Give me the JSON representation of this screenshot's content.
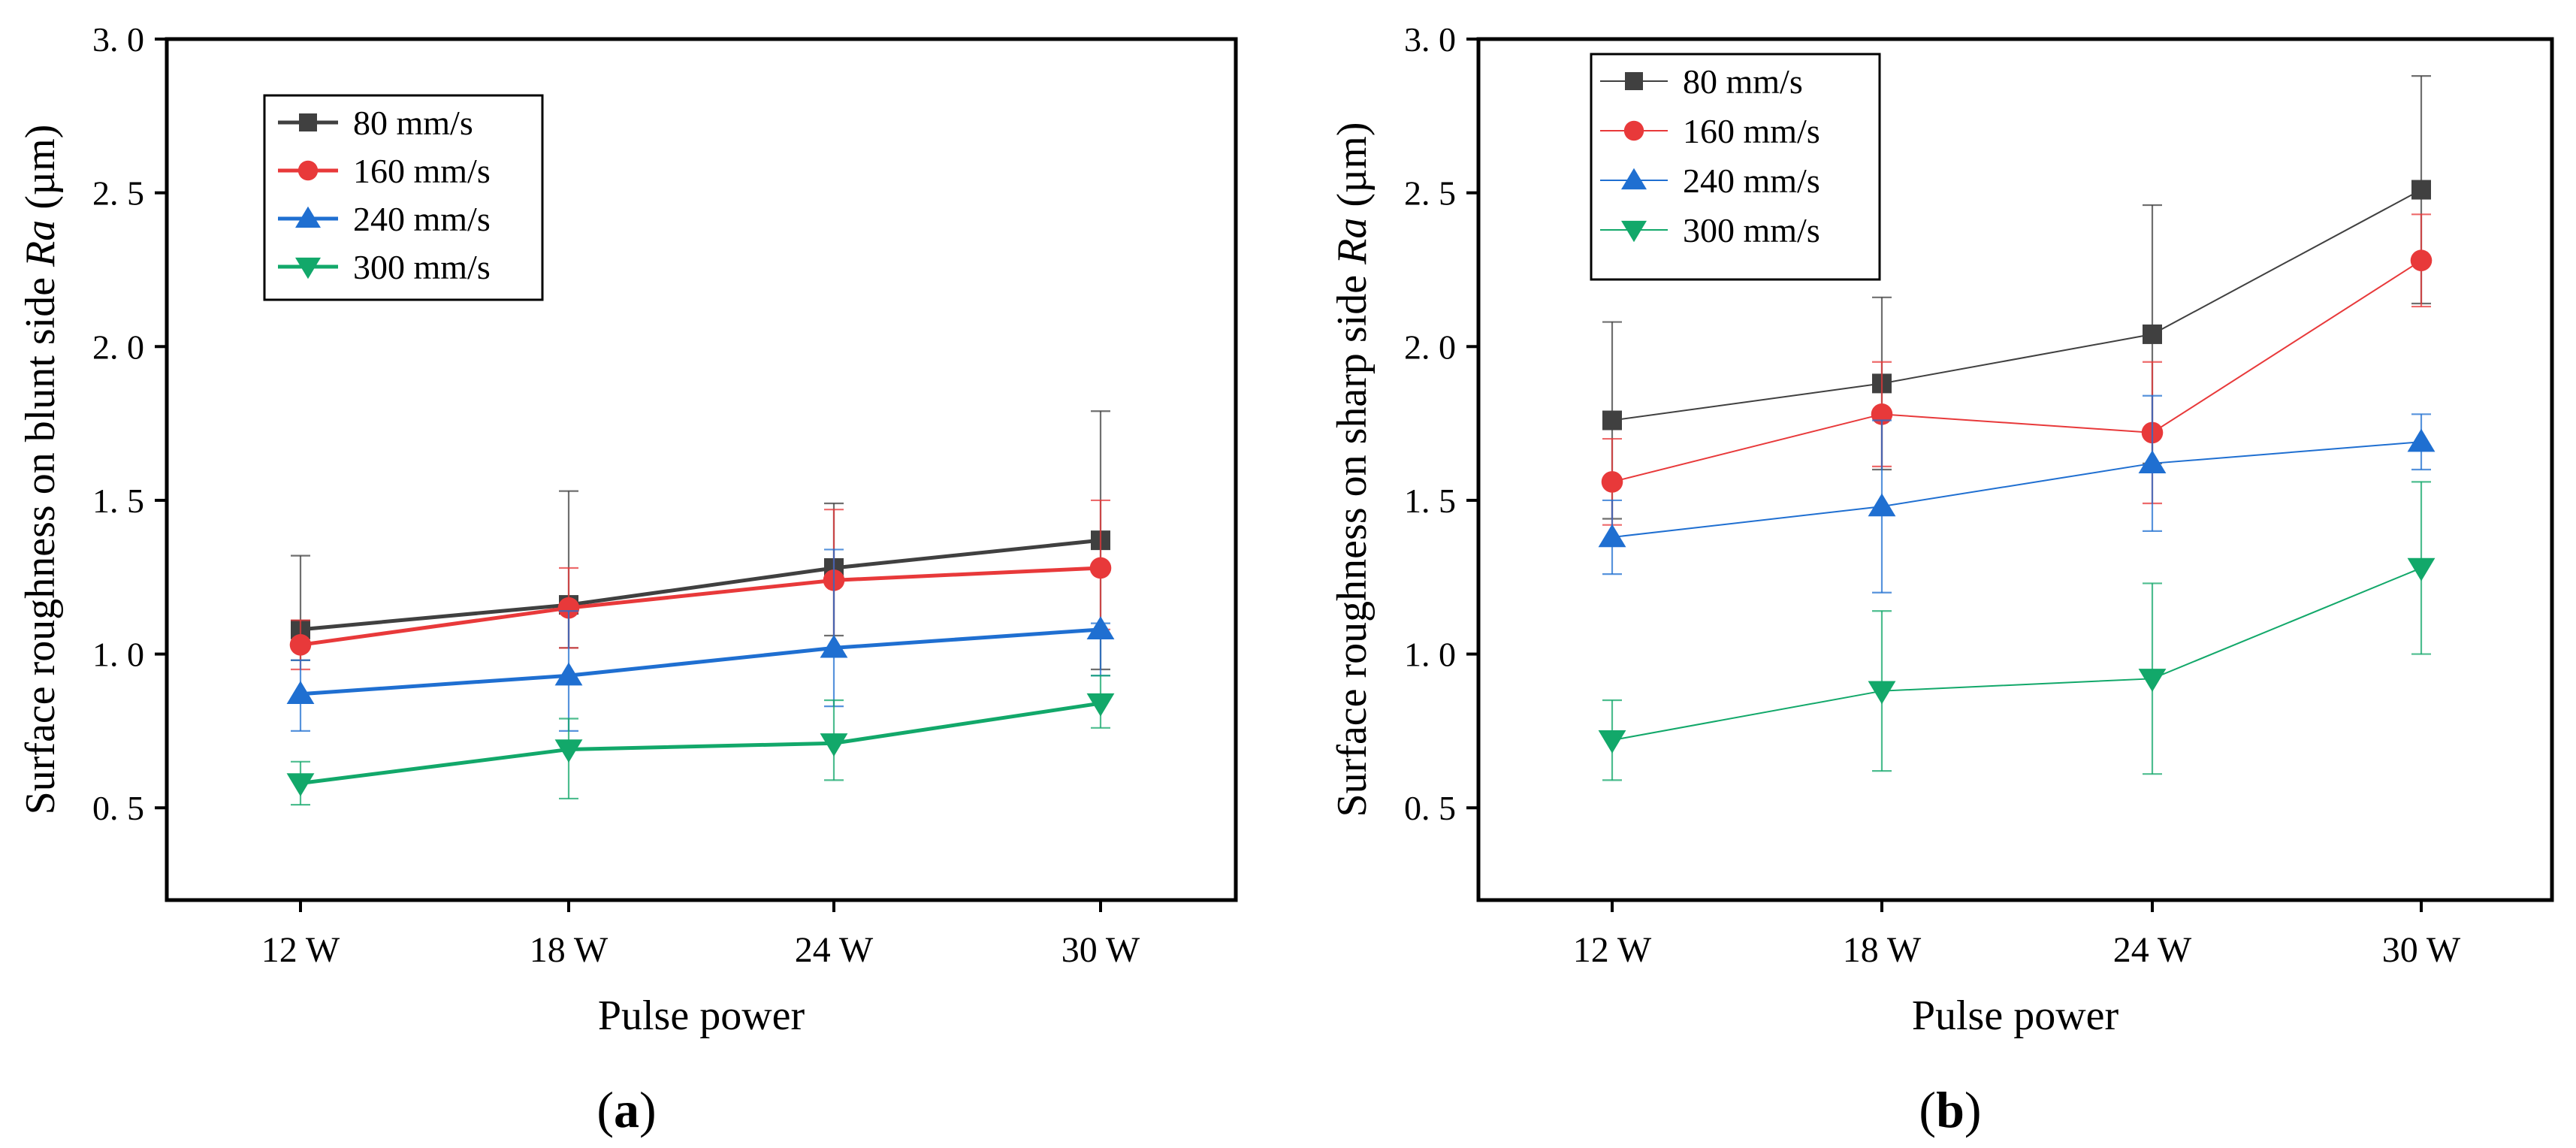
{
  "chart_data": [
    {
      "type": "line",
      "panel_label": "a",
      "xlabel": "Pulse power",
      "ylabel_prefix": "Surface roughness on blunt side ",
      "ylabel_italic": "Ra",
      "ylabel_suffix": " (µm)",
      "categories": [
        "12 W",
        "18 W",
        "24 W",
        "30 W"
      ],
      "ylim": [
        0.2,
        3.0
      ],
      "yticks": [
        0.5,
        1.0,
        1.5,
        2.0,
        2.5,
        3.0
      ],
      "ytick_labels": [
        "0. 5",
        "1. 0",
        "1. 5",
        "2. 0",
        "2. 5",
        "3. 0"
      ],
      "legend_position": "top-left",
      "series": [
        {
          "name": " 80 mm/s",
          "marker": "square",
          "color": "#404040",
          "values": [
            1.08,
            1.16,
            1.28,
            1.37
          ],
          "err_upper": [
            1.32,
            1.53,
            1.49,
            1.79
          ],
          "err_lower": [
            0.98,
            1.02,
            1.06,
            0.95
          ]
        },
        {
          "name": "160 mm/s",
          "marker": "circle",
          "color": "#e8393a",
          "values": [
            1.03,
            1.15,
            1.24,
            1.28
          ],
          "err_upper": [
            1.11,
            1.28,
            1.47,
            1.5
          ],
          "err_lower": [
            0.95,
            1.02,
            1.0,
            1.08
          ]
        },
        {
          "name": "240 mm/s",
          "marker": "triangle-up",
          "color": "#1f6fd1",
          "values": [
            0.87,
            0.93,
            1.02,
            1.08
          ],
          "err_upper": [
            0.98,
            1.14,
            1.34,
            1.1
          ],
          "err_lower": [
            0.75,
            0.75,
            0.83,
            0.93
          ]
        },
        {
          "name": "300 mm/s",
          "marker": "triangle-down",
          "color": "#12a86a",
          "values": [
            0.58,
            0.69,
            0.71,
            0.84
          ],
          "err_upper": [
            0.65,
            0.79,
            0.85,
            0.93
          ],
          "err_lower": [
            0.51,
            0.53,
            0.59,
            0.76
          ]
        }
      ]
    },
    {
      "type": "line",
      "panel_label": "b",
      "xlabel": "Pulse power",
      "ylabel_prefix": "Surface roughness on sharp side ",
      "ylabel_italic": "Ra",
      "ylabel_suffix": " (µm)",
      "categories": [
        "12 W",
        "18 W",
        "24 W",
        "30 W"
      ],
      "ylim": [
        0.2,
        3.0
      ],
      "yticks": [
        0.5,
        1.0,
        1.5,
        2.0,
        2.5,
        3.0
      ],
      "ytick_labels": [
        "0. 5",
        "1. 0",
        "1. 5",
        "2. 0",
        "2. 5",
        "3. 0"
      ],
      "legend_position": "top-left",
      "series": [
        {
          "name": " 80 mm/s",
          "marker": "square",
          "color": "#404040",
          "values": [
            1.76,
            1.88,
            2.04,
            2.51
          ],
          "err_upper": [
            2.08,
            2.16,
            2.46,
            2.88
          ],
          "err_lower": [
            1.44,
            1.6,
            1.62,
            2.14
          ]
        },
        {
          "name": "160 mm/s",
          "marker": "circle",
          "color": "#e8393a",
          "values": [
            1.56,
            1.78,
            1.72,
            2.28
          ],
          "err_upper": [
            1.7,
            1.95,
            1.95,
            2.43
          ],
          "err_lower": [
            1.42,
            1.61,
            1.49,
            2.13
          ]
        },
        {
          "name": "240 mm/s",
          "marker": "triangle-up",
          "color": "#1f6fd1",
          "values": [
            1.38,
            1.48,
            1.62,
            1.69
          ],
          "err_upper": [
            1.5,
            1.76,
            1.84,
            1.78
          ],
          "err_lower": [
            1.26,
            1.2,
            1.4,
            1.6
          ]
        },
        {
          "name": "300 mm/s",
          "marker": "triangle-down",
          "color": "#12a86a",
          "values": [
            0.72,
            0.88,
            0.92,
            1.28
          ],
          "err_upper": [
            0.85,
            1.14,
            1.23,
            1.56
          ],
          "err_lower": [
            0.59,
            0.62,
            0.61,
            1.0
          ]
        }
      ]
    }
  ]
}
